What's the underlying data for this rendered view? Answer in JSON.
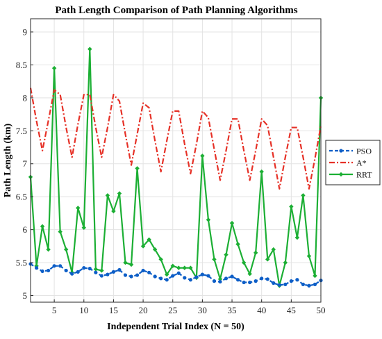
{
  "chart_data": {
    "type": "line",
    "title": "Path Length Comparison of Path Planning Algorithms",
    "xlabel": "Independent Trial Index (N = 50)",
    "ylabel": "Path Length (km)",
    "xlim": [
      1,
      50
    ],
    "ylim": [
      4.9,
      9.2
    ],
    "xticks": [
      5,
      10,
      15,
      20,
      25,
      30,
      35,
      40,
      45,
      50
    ],
    "xtick_labels": [
      "5",
      "10",
      "15",
      "20",
      "25",
      "30",
      "35",
      "40",
      "45",
      "50"
    ],
    "yticks": [
      5,
      5.5,
      6,
      6.5,
      7,
      7.5,
      8,
      8.5,
      9
    ],
    "ytick_labels": [
      "5",
      "5.5",
      "6",
      "6.5",
      "7",
      "7.5",
      "8",
      "8.5",
      "9"
    ],
    "grid": true,
    "legend_position": "outside-right",
    "x": [
      1,
      2,
      3,
      4,
      5,
      6,
      7,
      8,
      9,
      10,
      11,
      12,
      13,
      14,
      15,
      16,
      17,
      18,
      19,
      20,
      21,
      22,
      23,
      24,
      25,
      26,
      27,
      28,
      29,
      30,
      31,
      32,
      33,
      34,
      35,
      36,
      37,
      38,
      39,
      40,
      41,
      42,
      43,
      44,
      45,
      46,
      47,
      48,
      49,
      50
    ],
    "series": [
      {
        "name": "PSO",
        "color": "#0d5ec7",
        "marker": "circle",
        "linestyle": "dashed",
        "values": [
          5.48,
          5.42,
          5.37,
          5.38,
          5.45,
          5.45,
          5.38,
          5.33,
          5.36,
          5.42,
          5.41,
          5.35,
          5.3,
          5.32,
          5.36,
          5.39,
          5.31,
          5.29,
          5.31,
          5.38,
          5.35,
          5.29,
          5.26,
          5.24,
          5.3,
          5.34,
          5.27,
          5.24,
          5.28,
          5.32,
          5.3,
          5.22,
          5.21,
          5.26,
          5.29,
          5.24,
          5.2,
          5.2,
          5.22,
          5.26,
          5.25,
          5.19,
          5.16,
          5.17,
          5.22,
          5.24,
          5.17,
          5.15,
          5.17,
          5.23
        ]
      },
      {
        "name": "A*",
        "color": "#e63127",
        "marker": "none",
        "linestyle": "dash-dot",
        "values": [
          8.15,
          7.65,
          7.2,
          7.65,
          8.12,
          8.05,
          7.55,
          7.1,
          7.6,
          8.05,
          8.05,
          7.55,
          7.1,
          7.55,
          8.05,
          7.95,
          7.45,
          6.98,
          7.45,
          7.92,
          7.85,
          7.35,
          6.88,
          7.35,
          7.8,
          7.8,
          7.3,
          6.85,
          7.3,
          7.8,
          7.7,
          7.22,
          6.75,
          7.2,
          7.68,
          7.68,
          7.2,
          6.75,
          7.2,
          7.68,
          7.58,
          7.1,
          6.62,
          7.1,
          7.55,
          7.55,
          7.1,
          6.62,
          7.08,
          7.58
        ]
      },
      {
        "name": "RRT",
        "color": "#1caf34",
        "marker": "diamond",
        "linestyle": "solid",
        "values": [
          6.8,
          5.45,
          6.05,
          5.7,
          8.45,
          5.97,
          5.7,
          5.35,
          6.33,
          6.03,
          8.74,
          5.4,
          5.38,
          6.52,
          6.28,
          6.55,
          5.5,
          5.47,
          6.93,
          5.75,
          5.85,
          5.7,
          5.55,
          5.32,
          5.45,
          5.42,
          5.42,
          5.42,
          5.27,
          7.12,
          6.15,
          5.55,
          5.25,
          5.62,
          6.1,
          5.78,
          5.5,
          5.33,
          5.65,
          6.88,
          5.55,
          5.7,
          5.15,
          5.5,
          6.35,
          5.88,
          6.52,
          5.6,
          5.3,
          8.0
        ]
      }
    ]
  }
}
